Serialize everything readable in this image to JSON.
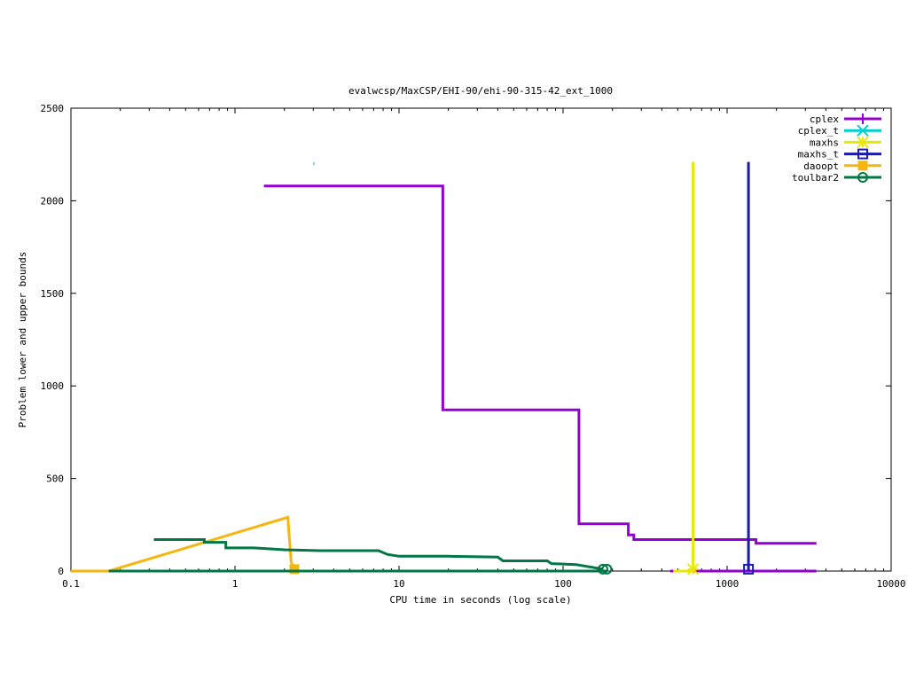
{
  "chart_data": {
    "type": "line",
    "title": "evalwcsp/MaxCSP/EHI-90/ehi-90-315-42_ext_1000",
    "xlabel": "CPU time in seconds (log scale)",
    "ylabel": "Problem lower and upper bounds",
    "xscale": "log",
    "xlim": [
      0.1,
      10000
    ],
    "ylim": [
      0,
      2500
    ],
    "xticks": [
      0.1,
      1,
      10,
      100,
      1000,
      10000
    ],
    "xtick_labels": [
      "0.1",
      "1",
      "10",
      "100",
      "1000",
      "10000"
    ],
    "yticks": [
      0,
      500,
      1000,
      1500,
      2000,
      2500
    ],
    "ytick_labels": [
      "0",
      "500",
      "1000",
      "1500",
      "2000",
      "2500"
    ],
    "grid": false,
    "legend_position": "top-right",
    "series": [
      {
        "name": "cplex",
        "color": "#9400d3",
        "marker": "plus",
        "x": [
          1.5,
          18.5,
          18.5,
          125,
          125,
          250,
          250,
          270,
          270,
          1500,
          1500,
          3500
        ],
        "y": [
          2080,
          2080,
          870,
          870,
          255,
          255,
          195,
          195,
          170,
          170,
          150,
          150
        ],
        "mark_x": [],
        "mark_y": []
      },
      {
        "name": "cplex",
        "color": "#9400d3",
        "marker": "plus",
        "x": [
          450,
          3500
        ],
        "y": [
          0,
          0
        ],
        "mark_x": [],
        "mark_y": []
      },
      {
        "name": "cplex_t",
        "color": "#00ced1",
        "marker": "cross",
        "x": [
          3.0,
          3.05
        ],
        "y": [
          2200,
          2200
        ],
        "mark_x": [],
        "mark_y": []
      },
      {
        "name": "maxhs",
        "color": "#e8e800",
        "marker": "star",
        "x": [
          620,
          620
        ],
        "y": [
          2210,
          0
        ],
        "mark_x": [
          620
        ],
        "mark_y": [
          10
        ]
      },
      {
        "name": "maxhs",
        "color": "#e8e800",
        "marker": "star",
        "x": [
          470,
          620
        ],
        "y": [
          0,
          0
        ],
        "mark_x": [],
        "mark_y": []
      },
      {
        "name": "maxhs_t",
        "color": "#1a1ab0",
        "marker": "square",
        "x": [
          1350,
          1350
        ],
        "y": [
          2210,
          0
        ],
        "mark_x": [
          1350
        ],
        "mark_y": [
          10
        ]
      },
      {
        "name": "daoopt",
        "color": "#f4b60f",
        "marker": "filled-square",
        "x": [
          0.1,
          0.17,
          2.1,
          2.2,
          2.3
        ],
        "y": [
          0,
          0,
          290,
          50,
          10
        ],
        "mark_x": [
          2.3
        ],
        "mark_y": [
          10
        ]
      },
      {
        "name": "toulbar2",
        "color": "#007744",
        "marker": "circle",
        "x": [
          0.32,
          0.65,
          0.65,
          0.88,
          0.88,
          1.3,
          1.6,
          2.0,
          3.3,
          7.5,
          8.5,
          10,
          20,
          40,
          43,
          80,
          85,
          120,
          175
        ],
        "y": [
          170,
          170,
          155,
          155,
          125,
          125,
          120,
          115,
          110,
          110,
          90,
          80,
          80,
          75,
          55,
          55,
          40,
          35,
          10
        ],
        "mark_x": [
          175,
          185
        ],
        "mark_y": [
          10,
          10
        ]
      },
      {
        "name": "toulbar2",
        "color": "#007744",
        "marker": "circle",
        "x": [
          0.17,
          185
        ],
        "y": [
          0,
          0
        ],
        "mark_x": [],
        "mark_y": []
      }
    ],
    "legend": [
      {
        "name": "cplex",
        "color": "#9400d3",
        "marker": "plus"
      },
      {
        "name": "cplex_t",
        "color": "#00ced1",
        "marker": "cross"
      },
      {
        "name": "maxhs",
        "color": "#e8e800",
        "marker": "star"
      },
      {
        "name": "maxhs_t",
        "color": "#1a1ab0",
        "marker": "square"
      },
      {
        "name": "daoopt",
        "color": "#f4b60f",
        "marker": "filled-square"
      },
      {
        "name": "toulbar2",
        "color": "#007744",
        "marker": "circle"
      }
    ]
  }
}
